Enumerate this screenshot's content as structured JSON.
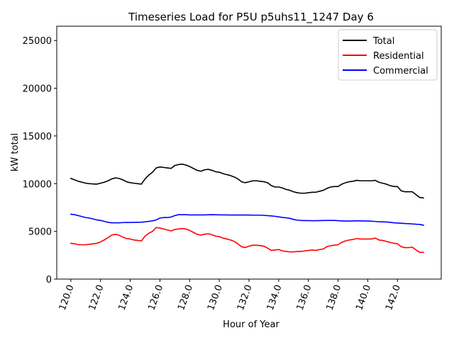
{
  "chart_data": {
    "type": "line",
    "title": "Timeseries Load for P5U p5uhs11_1247  Day 6",
    "xlabel": "Hour of Year",
    "ylabel": "kW total",
    "xlim": [
      119.05,
      144.95
    ],
    "ylim": [
      0,
      26500
    ],
    "xticks": [
      120,
      122,
      124,
      126,
      128,
      130,
      132,
      134,
      136,
      138,
      140,
      142
    ],
    "xtick_labels": [
      "120.0",
      "122.0",
      "124.0",
      "126.0",
      "128.0",
      "130.0",
      "132.0",
      "134.0",
      "136.0",
      "138.0",
      "140.0",
      "142.0"
    ],
    "yticks": [
      0,
      5000,
      10000,
      15000,
      20000,
      25000
    ],
    "ytick_labels": [
      "0",
      "5000",
      "10000",
      "15000",
      "20000",
      "25000"
    ],
    "legend_position": "top-right",
    "x": [
      120.0,
      120.25,
      120.5,
      120.75,
      121.0,
      121.25,
      121.5,
      121.75,
      122.0,
      122.25,
      122.5,
      122.75,
      123.0,
      123.25,
      123.5,
      123.75,
      124.0,
      124.25,
      124.5,
      124.75,
      125.0,
      125.25,
      125.5,
      125.75,
      126.0,
      126.25,
      126.5,
      126.75,
      127.0,
      127.25,
      127.5,
      127.75,
      128.0,
      128.25,
      128.5,
      128.75,
      129.0,
      129.25,
      129.5,
      129.75,
      130.0,
      130.25,
      130.5,
      130.75,
      131.0,
      131.25,
      131.5,
      131.75,
      132.0,
      132.25,
      132.5,
      132.75,
      133.0,
      133.25,
      133.5,
      133.75,
      134.0,
      134.25,
      134.5,
      134.75,
      135.0,
      135.25,
      135.5,
      135.75,
      136.0,
      136.25,
      136.5,
      136.75,
      137.0,
      137.25,
      137.5,
      137.75,
      138.0,
      138.25,
      138.5,
      138.75,
      139.0,
      139.25,
      139.5,
      139.75,
      140.0,
      140.25,
      140.5,
      140.75,
      141.0,
      141.25,
      141.5,
      141.75,
      142.0,
      142.25,
      142.5,
      142.75,
      143.0,
      143.25,
      143.5,
      143.75
    ],
    "series": [
      {
        "name": "Total",
        "color": "#000000",
        "values": [
          10550,
          10400,
          10250,
          10150,
          10050,
          10000,
          9970,
          9950,
          10050,
          10150,
          10300,
          10500,
          10600,
          10550,
          10400,
          10200,
          10100,
          10050,
          10000,
          9950,
          10500,
          10900,
          11200,
          11650,
          11750,
          11700,
          11650,
          11600,
          11900,
          12000,
          12050,
          11950,
          11800,
          11600,
          11400,
          11300,
          11450,
          11500,
          11400,
          11250,
          11200,
          11050,
          10950,
          10850,
          10700,
          10500,
          10200,
          10100,
          10200,
          10300,
          10300,
          10250,
          10200,
          10100,
          9800,
          9650,
          9650,
          9550,
          9400,
          9300,
          9150,
          9050,
          9000,
          9000,
          9050,
          9100,
          9100,
          9200,
          9300,
          9500,
          9650,
          9700,
          9700,
          9950,
          10100,
          10200,
          10250,
          10350,
          10300,
          10300,
          10300,
          10300,
          10350,
          10150,
          10050,
          9950,
          9800,
          9700,
          9700,
          9250,
          9150,
          9150,
          9150,
          8850,
          8550,
          8500
        ]
      },
      {
        "name": "Residential",
        "color": "#ff0000",
        "values": [
          3750,
          3700,
          3600,
          3600,
          3600,
          3650,
          3700,
          3750,
          3900,
          4100,
          4350,
          4600,
          4700,
          4600,
          4400,
          4250,
          4200,
          4100,
          4050,
          4000,
          4500,
          4800,
          5000,
          5400,
          5350,
          5250,
          5150,
          5050,
          5200,
          5250,
          5300,
          5250,
          5100,
          4900,
          4700,
          4600,
          4700,
          4750,
          4650,
          4500,
          4450,
          4300,
          4200,
          4100,
          3950,
          3700,
          3400,
          3300,
          3450,
          3550,
          3550,
          3500,
          3450,
          3250,
          3000,
          3050,
          3100,
          2950,
          2900,
          2850,
          2850,
          2900,
          2900,
          2950,
          3000,
          3050,
          3000,
          3100,
          3150,
          3400,
          3500,
          3550,
          3600,
          3850,
          4000,
          4100,
          4150,
          4250,
          4200,
          4200,
          4200,
          4200,
          4300,
          4100,
          4050,
          3950,
          3850,
          3750,
          3700,
          3400,
          3300,
          3300,
          3350,
          3050,
          2800,
          2800
        ]
      },
      {
        "name": "Commercial",
        "color": "#0000ff",
        "values": [
          6800,
          6750,
          6650,
          6550,
          6450,
          6400,
          6300,
          6200,
          6150,
          6050,
          5950,
          5900,
          5900,
          5900,
          5920,
          5930,
          5930,
          5940,
          5950,
          5960,
          6000,
          6050,
          6100,
          6200,
          6400,
          6450,
          6450,
          6500,
          6650,
          6750,
          6750,
          6750,
          6720,
          6720,
          6720,
          6720,
          6720,
          6740,
          6750,
          6740,
          6730,
          6720,
          6720,
          6710,
          6710,
          6710,
          6710,
          6710,
          6710,
          6700,
          6700,
          6700,
          6680,
          6650,
          6620,
          6580,
          6520,
          6460,
          6420,
          6370,
          6250,
          6180,
          6150,
          6130,
          6130,
          6120,
          6120,
          6130,
          6140,
          6150,
          6150,
          6150,
          6120,
          6100,
          6080,
          6080,
          6090,
          6100,
          6100,
          6090,
          6080,
          6060,
          6040,
          6010,
          6000,
          5980,
          5950,
          5900,
          5880,
          5850,
          5820,
          5800,
          5780,
          5750,
          5730,
          5650
        ]
      }
    ]
  }
}
